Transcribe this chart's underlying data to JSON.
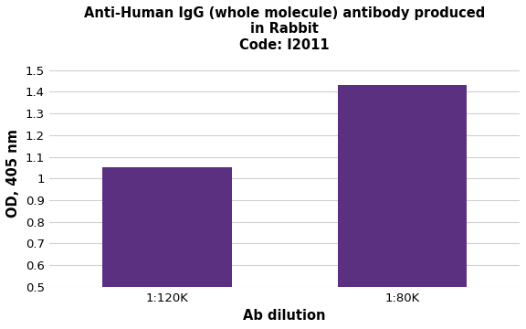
{
  "title_line1": "Anti-Human IgG (whole molecule) antibody produced",
  "title_line2": "in Rabbit",
  "title_line3": "Code: I2011",
  "categories": [
    "1:120K",
    "1:80K"
  ],
  "values": [
    1.05,
    1.43
  ],
  "bar_color": "#5b3080",
  "xlabel": "Ab dilution",
  "ylabel": "OD, 405 nm",
  "ylim": [
    0.5,
    1.55
  ],
  "yticks": [
    0.5,
    0.6,
    0.7,
    0.8,
    0.9,
    1.0,
    1.1,
    1.2,
    1.3,
    1.4,
    1.5
  ],
  "background_color": "#ffffff",
  "grid_color": "#d0d0d0",
  "title_fontsize": 10.5,
  "axis_label_fontsize": 10.5,
  "tick_fontsize": 9.5,
  "bar_width": 0.55
}
